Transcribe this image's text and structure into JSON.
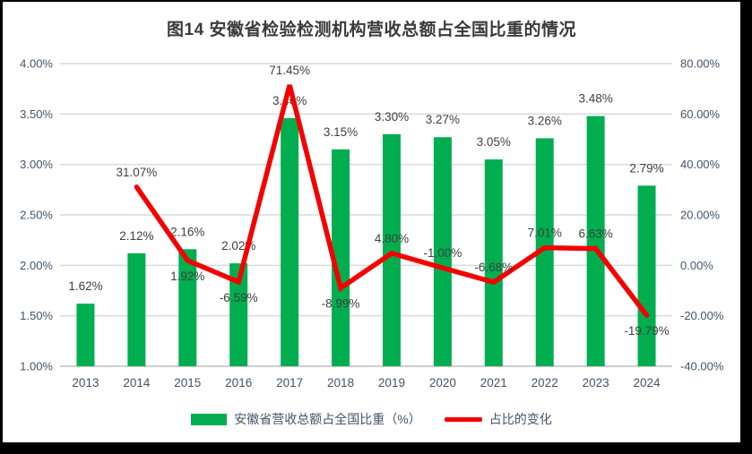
{
  "title": "图14 安徽省检验检测机构营收总额占全国比重的情况",
  "legend": {
    "bar_label": "安徽省营收总额占全国比重（%）",
    "line_label": "占比的变化"
  },
  "colors": {
    "bar": "#00AE50",
    "line": "#F40000",
    "gridline": "#D9D9D9",
    "axis_line": "#BFBFBF",
    "tick_text": "#44546A",
    "data_label_text": "#3F3F3F",
    "title_text": "#3A3A3A",
    "frame": "#000000",
    "background": "#FFFFFF"
  },
  "chart_data": {
    "type": "combo-bar-line",
    "title": "图14 安徽省检验检测机构营收总额占全国比重的情况",
    "categories": [
      "2013",
      "2014",
      "2015",
      "2016",
      "2017",
      "2018",
      "2019",
      "2020",
      "2021",
      "2022",
      "2023",
      "2024"
    ],
    "series": [
      {
        "name": "安徽省营收总额占全国比重（%）",
        "chart_type": "bar",
        "axis": "left",
        "values": [
          1.62,
          2.12,
          2.16,
          2.02,
          3.46,
          3.15,
          3.3,
          3.27,
          3.05,
          3.26,
          3.48,
          2.79
        ],
        "labels": [
          "1.62%",
          "2.12%",
          "2.16%",
          "2.02%",
          "3.46%",
          "3.15%",
          "3.30%",
          "3.27%",
          "3.05%",
          "3.26%",
          "3.48%",
          "2.79%"
        ]
      },
      {
        "name": "占比的变化",
        "chart_type": "line",
        "axis": "right",
        "values": [
          null,
          31.07,
          1.92,
          -6.59,
          71.45,
          -8.99,
          4.8,
          -1.0,
          -6.68,
          7.01,
          6.63,
          -19.79
        ],
        "labels": [
          null,
          "31.07%",
          "1.92%",
          "-6.59%",
          "71.45%",
          "-8.99%",
          "4.80%",
          "-1.00%",
          "-6.68%",
          "7.01%",
          "6.63%",
          "-19.79%"
        ],
        "label_positions": [
          null,
          "above",
          "below",
          "below",
          "above",
          "below",
          "above",
          "above",
          "above",
          "above",
          "above",
          "below"
        ]
      }
    ],
    "left_axis": {
      "min": 1.0,
      "max": 4.0,
      "step": 0.5,
      "ticks": [
        "4.00%",
        "3.50%",
        "3.00%",
        "2.50%",
        "2.00%",
        "1.50%",
        "1.00%"
      ]
    },
    "right_axis": {
      "min": -40,
      "max": 80,
      "step": 20,
      "ticks": [
        "80.00%",
        "60.00%",
        "40.00%",
        "20.00%",
        "0.00%",
        "-20.00%",
        "-40.00%"
      ]
    },
    "grid": true,
    "legend_position": "bottom"
  }
}
